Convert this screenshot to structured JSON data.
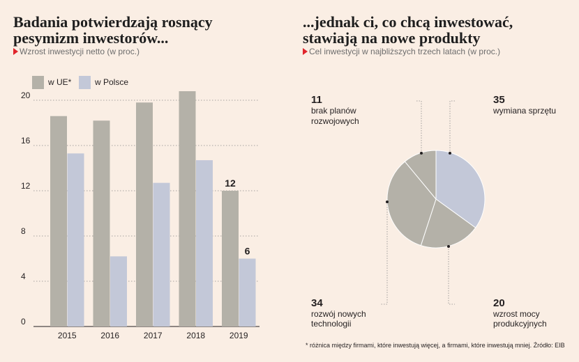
{
  "left": {
    "title_line1": "Badania potwierdzają rosnący",
    "title_line2": "pesymizm inwestorów...",
    "subtitle": "Wzrost inwestycji netto (w proc.)"
  },
  "right": {
    "title_line1": "...jednak ci, co chcą inwestować,",
    "title_line2": "stawiają na nowe produkty",
    "subtitle": "Cel inwestycji w najbliższych trzech latach (w proc.)"
  },
  "footnote": "* różnica między firmami, które inwestują więcej, a firmami, które inwestują mniej. Źródło: EIB",
  "colors": {
    "ue": "#b4b1a8",
    "polska": "#c3c8d8",
    "pie_highlight": "#c3c8d8",
    "pie_other": "#b4b1a8",
    "accent": "#e0242b",
    "grid": "#8a8a8a"
  },
  "chart_data": [
    {
      "type": "bar",
      "categories": [
        "2015",
        "2016",
        "2017",
        "2018",
        "2019"
      ],
      "series": [
        {
          "name": "w UE*",
          "values": [
            18.6,
            18.2,
            19.8,
            20.8,
            12
          ]
        },
        {
          "name": "w Polsce",
          "values": [
            15.3,
            6.2,
            12.7,
            14.7,
            6
          ]
        }
      ],
      "yticks": [
        0,
        4,
        8,
        12,
        16,
        20
      ],
      "ylim": [
        0,
        20.8
      ],
      "data_labels": {
        "2019": [
          "12",
          "6"
        ]
      },
      "grid": true,
      "legend": "top-left"
    },
    {
      "type": "pie",
      "slices": [
        {
          "value": 35,
          "label": "wymiana sprzętu"
        },
        {
          "value": 20,
          "label": "wzrost mocy produkcyjnych"
        },
        {
          "value": 34,
          "label": "rozwój nowych technologii"
        },
        {
          "value": 11,
          "label": "brak planów rozwojowych"
        }
      ]
    }
  ],
  "pie_labels": {
    "wymiana": {
      "value": "35",
      "line1": "wymiana sprzętu"
    },
    "wzrost": {
      "value": "20",
      "line1": "wzrost mocy",
      "line2": "produkcyjnych"
    },
    "rozwoj": {
      "value": "34",
      "line1": "rozwój nowych",
      "line2": "technologii"
    },
    "brak": {
      "value": "11",
      "line1": "brak planów",
      "line2": "rozwojowych"
    }
  }
}
